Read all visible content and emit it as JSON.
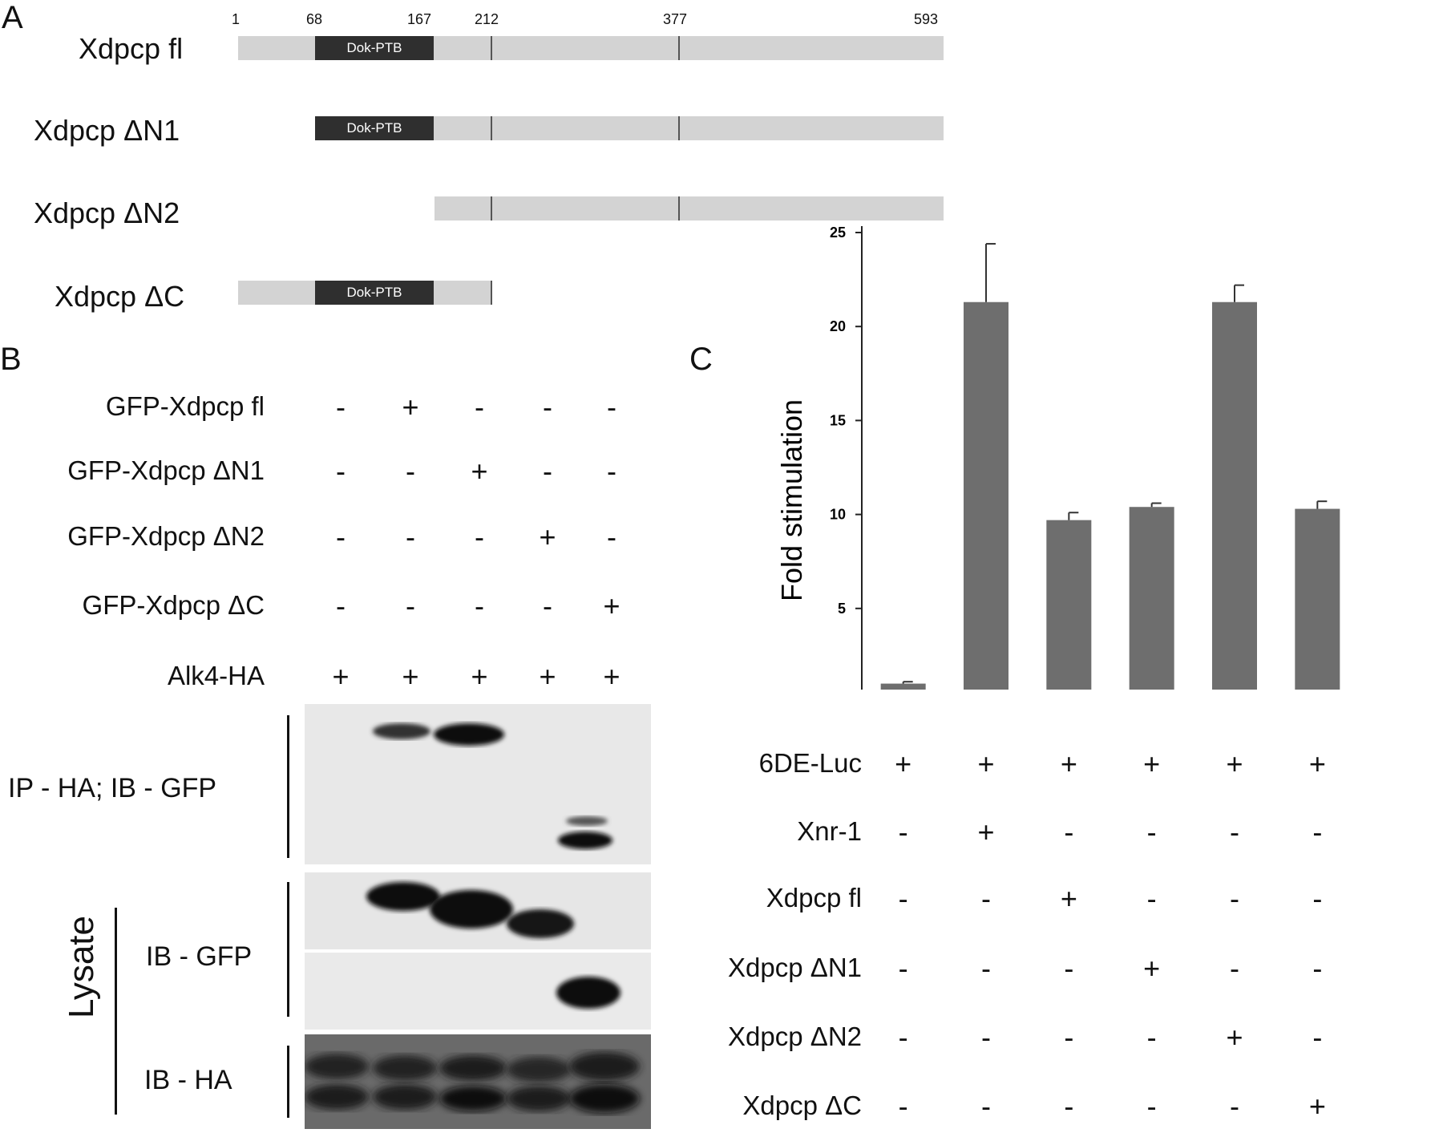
{
  "panel_a": {
    "letter": "A",
    "positions": [
      "1",
      "68",
      "167",
      "212",
      "377",
      "593"
    ],
    "constructs": [
      "Xdpcp fl",
      "Xdpcp ΔN1",
      "Xdpcp ΔN2",
      "Xdpcp ΔC"
    ],
    "domain_label": "Dok-PTB"
  },
  "panel_b": {
    "letter": "B",
    "rows": [
      {
        "label": "GFP-Xdpcp fl",
        "signs": [
          "-",
          "+",
          "-",
          "-",
          "-"
        ]
      },
      {
        "label": "GFP-Xdpcp ΔN1",
        "signs": [
          "-",
          "-",
          "+",
          "-",
          "-"
        ]
      },
      {
        "label": "GFP-Xdpcp ΔN2",
        "signs": [
          "-",
          "-",
          "-",
          "+",
          "-"
        ]
      },
      {
        "label": "GFP-Xdpcp ΔC",
        "signs": [
          "-",
          "-",
          "-",
          "-",
          "+"
        ]
      },
      {
        "label": "Alk4-HA",
        "signs": [
          "+",
          "+",
          "+",
          "+",
          "+"
        ]
      }
    ],
    "blot_labels": {
      "ip": "IP - HA; IB - GFP",
      "lysate": "Lysate",
      "ib_gfp": "IB - GFP",
      "ib_ha": "IB - HA"
    }
  },
  "panel_c": {
    "letter": "C",
    "rows": [
      {
        "label": "6DE-Luc",
        "signs": [
          "+",
          "+",
          "+",
          "+",
          "+",
          "+"
        ]
      },
      {
        "label": "Xnr-1",
        "signs": [
          "-",
          "+",
          "-",
          "-",
          "-",
          "-"
        ]
      },
      {
        "label": "Xdpcp fl",
        "signs": [
          "-",
          "-",
          "+",
          "-",
          "-",
          "-"
        ]
      },
      {
        "label": "Xdpcp ΔN1",
        "signs": [
          "-",
          "-",
          "-",
          "+",
          "-",
          "-"
        ]
      },
      {
        "label": "Xdpcp ΔN2",
        "signs": [
          "-",
          "-",
          "-",
          "-",
          "+",
          "-"
        ]
      },
      {
        "label": "Xdpcp ΔC",
        "signs": [
          "-",
          "-",
          "-",
          "-",
          "-",
          "+"
        ]
      }
    ]
  },
  "chart_data": {
    "type": "bar",
    "categories": [
      "1",
      "2",
      "3",
      "4",
      "5",
      "6"
    ],
    "values": [
      1.0,
      21.3,
      9.7,
      10.4,
      21.3,
      10.3
    ],
    "errors": [
      0.1,
      3.1,
      0.4,
      0.2,
      0.9,
      0.4
    ],
    "ylabel": "Fold stimulation",
    "ylim": [
      0,
      25
    ],
    "yticks": [
      "0",
      "5",
      "10",
      "15",
      "20",
      "25"
    ],
    "bar_color": "#6e6e6e",
    "grid": false
  }
}
